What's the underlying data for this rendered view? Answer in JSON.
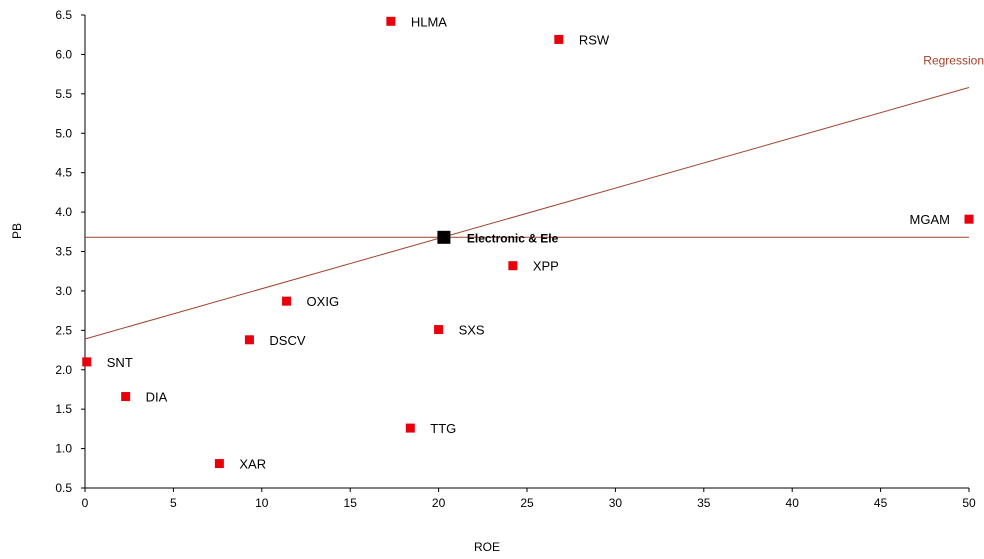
{
  "chart_data": {
    "type": "scatter",
    "xlabel": "ROE",
    "ylabel": "PB",
    "xlim": [
      0,
      50
    ],
    "ylim": [
      0.5,
      6.5
    ],
    "x_ticks": [
      "0",
      "5",
      "10",
      "15",
      "20",
      "25",
      "30",
      "35",
      "40",
      "45",
      "50"
    ],
    "y_ticks": [
      "0.5",
      "1.0",
      "1.5",
      "2.0",
      "2.5",
      "3.0",
      "3.5",
      "4.0",
      "4.5",
      "5.0",
      "5.5",
      "6.0",
      "6.5"
    ],
    "grid": false,
    "points": [
      {
        "label": "HLMA",
        "x": 17.3,
        "y": 6.42
      },
      {
        "label": "RSW",
        "x": 26.8,
        "y": 6.19
      },
      {
        "label": "MGAM",
        "x": 50.0,
        "y": 3.91
      },
      {
        "label": "XPP",
        "x": 24.2,
        "y": 3.32
      },
      {
        "label": "OXIG",
        "x": 11.4,
        "y": 2.87
      },
      {
        "label": "SXS",
        "x": 20.0,
        "y": 2.51
      },
      {
        "label": "DSCV",
        "x": 9.3,
        "y": 2.38
      },
      {
        "label": "SNT",
        "x": 0.1,
        "y": 2.1
      },
      {
        "label": "DIA",
        "x": 2.3,
        "y": 1.66
      },
      {
        "label": "TTG",
        "x": 18.4,
        "y": 1.26
      },
      {
        "label": "XAR",
        "x": 7.6,
        "y": 0.81
      }
    ],
    "sector_point": {
      "label": "Electronic & Ele",
      "x": 20.3,
      "y": 3.68
    },
    "reference_line": {
      "y": 3.68
    },
    "regression": {
      "label": "Regression",
      "y_at_x0": 2.39,
      "y_at_x50": 5.58
    },
    "colors": {
      "points": "#e8000b",
      "sector": "#000000",
      "lines": "#a0422a"
    }
  }
}
